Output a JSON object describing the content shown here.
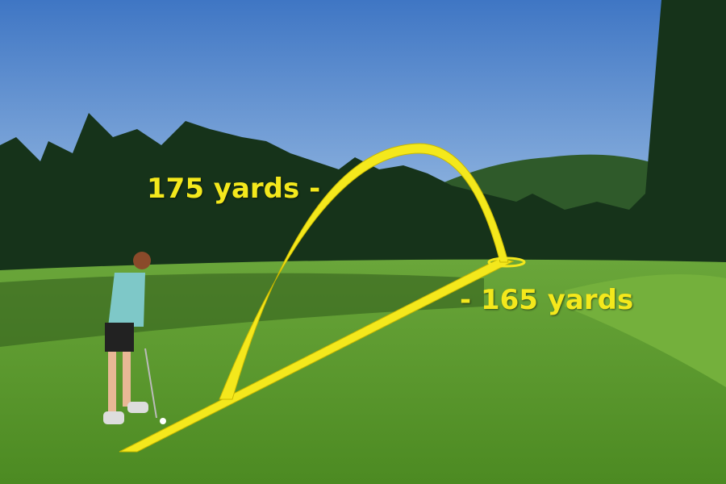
{
  "annotations": {
    "carry_distance": "175 yards -",
    "ground_distance": "- 165 yards"
  },
  "colors": {
    "overlay_yellow": "#f4e81c",
    "sky": "#5b8fd0",
    "grass": "#5c9a2c"
  }
}
